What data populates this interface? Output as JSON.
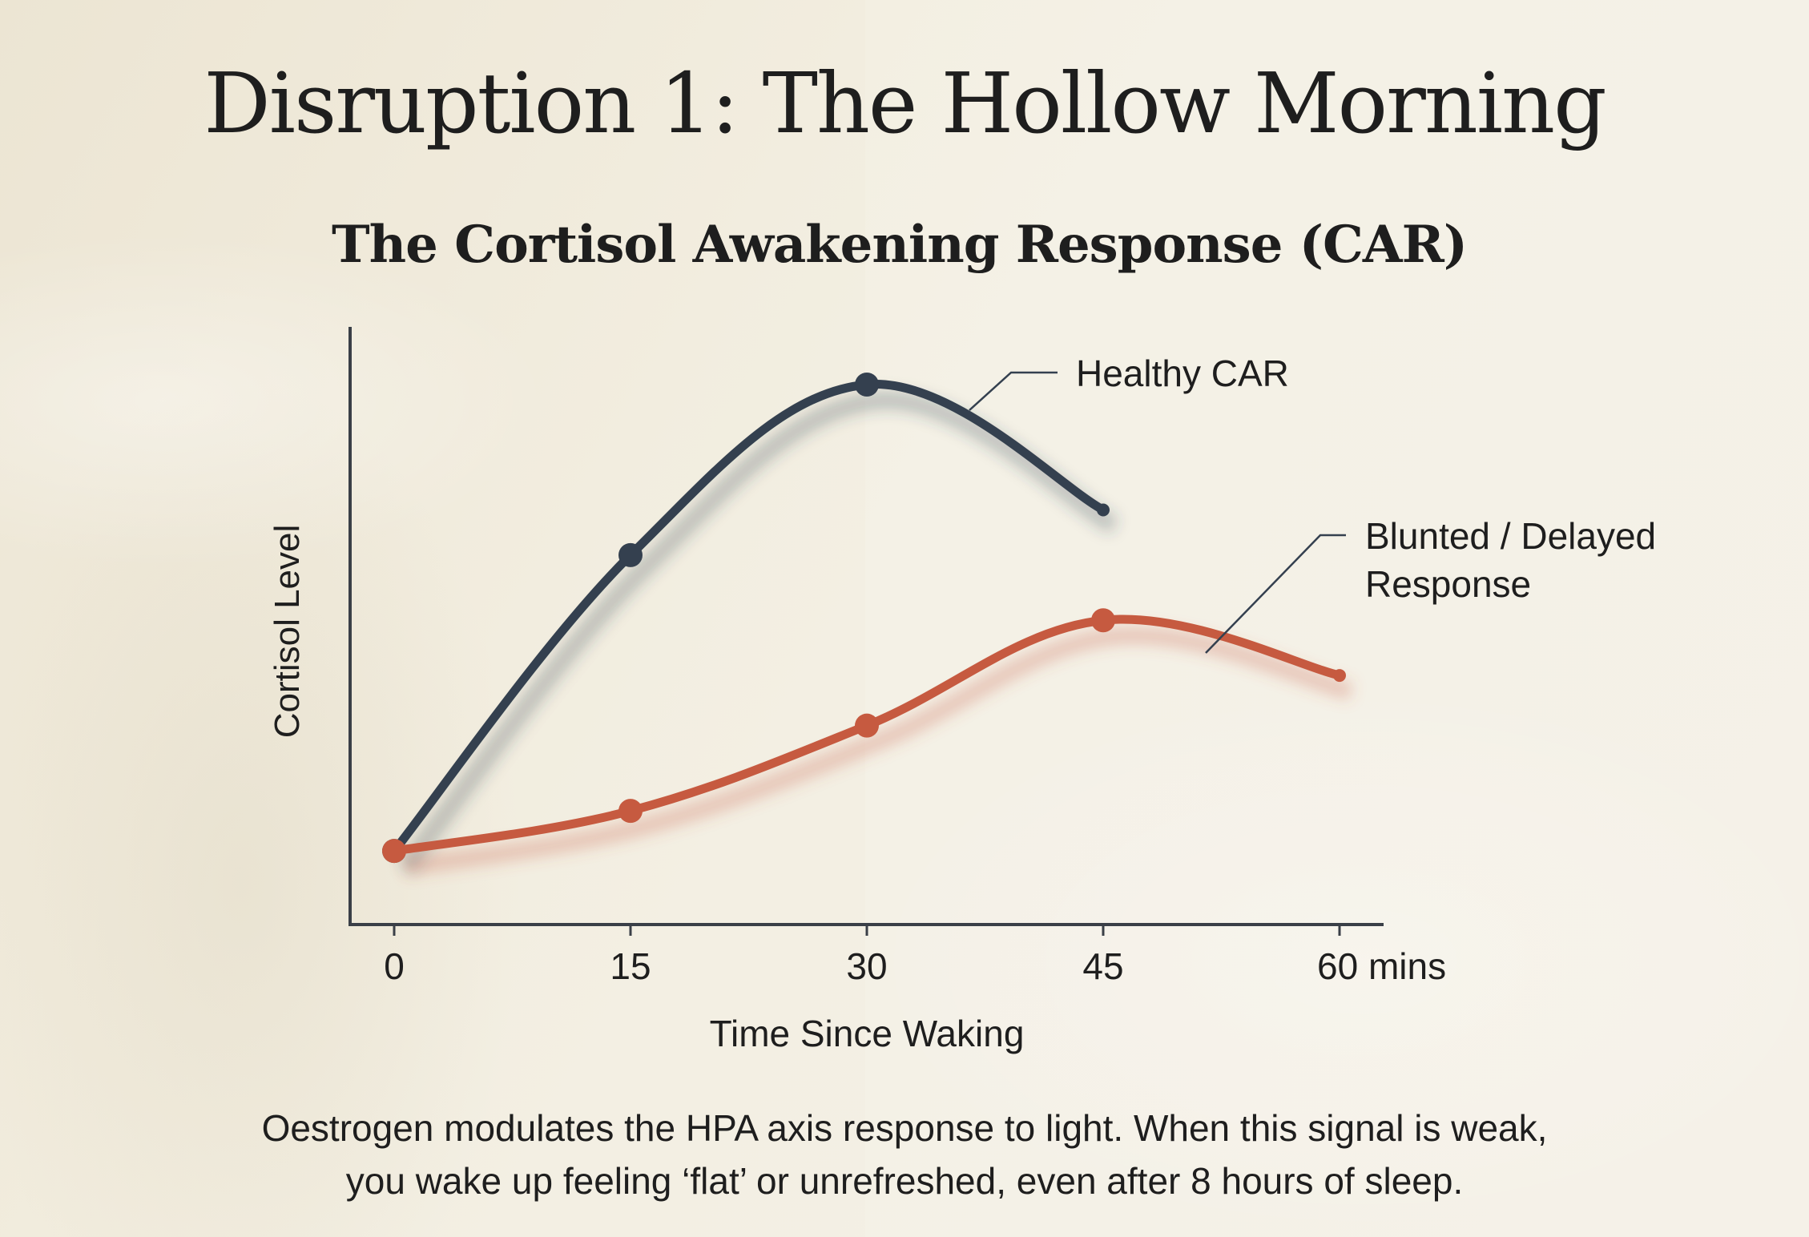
{
  "title": "Disruption 1: The Hollow Morning",
  "caption": {
    "line1": "Oestrogen modulates the HPA axis response to light. When this signal is weak,",
    "line2": "you wake up feeling ‘flat’ or unrefreshed, even after 8 hours of sleep."
  },
  "colors": {
    "healthy": "#34404f",
    "blunted": "#c65a40",
    "axis": "#3a3f47"
  },
  "chart_data": {
    "type": "line",
    "title": "The Cortisol Awakening Response (CAR)",
    "xlabel": "Time Since Waking",
    "ylabel": "Cortisol Level",
    "x_ticks": [
      "0",
      "15",
      "30",
      "45",
      "60 mins"
    ],
    "xlim": [
      0,
      60
    ],
    "ylim": [
      0,
      100
    ],
    "series": [
      {
        "name": "Healthy CAR",
        "x": [
          0,
          15,
          30,
          45
        ],
        "values": [
          7,
          66,
          100,
          75
        ],
        "color": "#34404f"
      },
      {
        "name": "Blunted / Delayed Response",
        "x": [
          0,
          15,
          30,
          45,
          60
        ],
        "values": [
          7,
          15,
          32,
          53,
          42
        ],
        "color": "#c65a40"
      }
    ],
    "annotations": [
      {
        "series": 0,
        "label": "Healthy CAR"
      },
      {
        "series": 1,
        "label_lines": [
          "Blunted / Delayed",
          "Response"
        ]
      }
    ]
  }
}
